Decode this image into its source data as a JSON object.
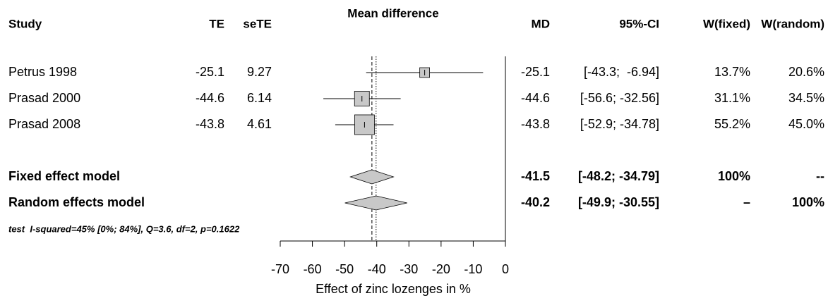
{
  "chart_data": {
    "type": "forest",
    "headers": {
      "study": "Study",
      "te": "TE",
      "se_te": "seTE",
      "plot": "Mean difference",
      "md": "MD",
      "ci": "95%-CI",
      "w_fixed": "W(fixed)",
      "w_random": "W(random)"
    },
    "studies": [
      {
        "name": "Petrus 1998",
        "te": -25.1,
        "se_te": 9.27,
        "md": -25.1,
        "ci": [
          -43.3,
          -6.94
        ],
        "ci_label": "[-43.3;  -6.94]",
        "w_fixed": 13.7,
        "w_fixed_label": "13.7%",
        "w_random": 20.6,
        "w_random_label": "20.6%"
      },
      {
        "name": "Prasad 2000",
        "te": -44.6,
        "se_te": 6.14,
        "md": -44.6,
        "ci": [
          -56.6,
          -32.56
        ],
        "ci_label": "[-56.6; -32.56]",
        "w_fixed": 31.1,
        "w_fixed_label": "31.1%",
        "w_random": 34.5,
        "w_random_label": "34.5%"
      },
      {
        "name": "Prasad 2008",
        "te": -43.8,
        "se_te": 4.61,
        "md": -43.8,
        "ci": [
          -52.9,
          -34.78
        ],
        "ci_label": "[-52.9; -34.78]",
        "w_fixed": 55.2,
        "w_fixed_label": "55.2%",
        "w_random": 45.0,
        "w_random_label": "45.0%"
      }
    ],
    "models": [
      {
        "name": "Fixed effect model",
        "md": -41.5,
        "ci": [
          -48.2,
          -34.79
        ],
        "ci_label": "[-48.2; -34.79]",
        "w_fixed_label": "100%",
        "w_random_label": "--"
      },
      {
        "name": "Random effects model",
        "md": -40.2,
        "ci": [
          -49.9,
          -30.55
        ],
        "ci_label": "[-49.9; -30.55]",
        "w_fixed_label": "–",
        "w_random_label": "100%"
      }
    ],
    "heterogeneity": "test  I-squared=45% [0%; 84%], Q=3.6, df=2, p=0.1622",
    "xlim": [
      -70,
      0
    ],
    "xticks": [
      -70,
      -60,
      -50,
      -40,
      -30,
      -20,
      -10,
      0
    ],
    "xlabel": "Effect of zinc lozenges in %"
  }
}
